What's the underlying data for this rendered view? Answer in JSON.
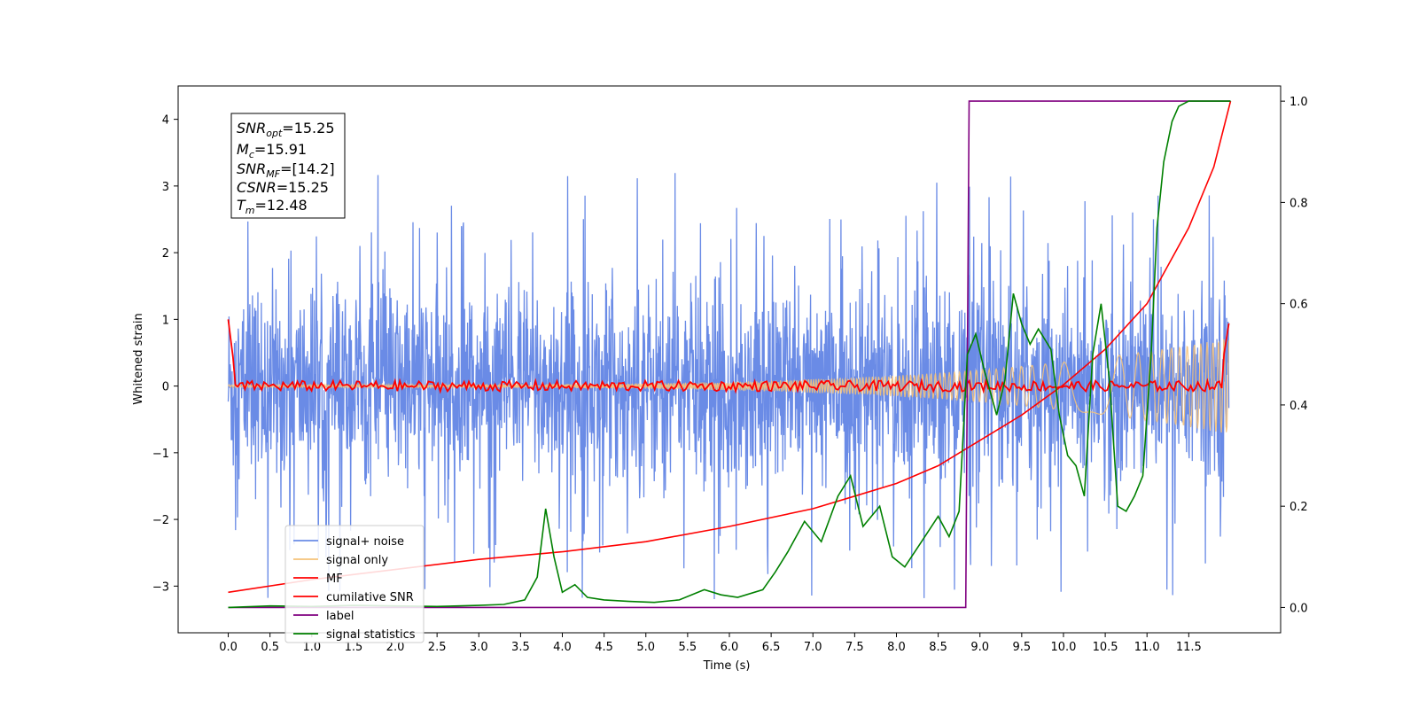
{
  "chart_data": {
    "type": "line",
    "xlabel": "Time (s)",
    "ylabel_left": "Whitened strain",
    "ylabel_right": "",
    "xlim": [
      -0.6,
      12.6
    ],
    "ylim_left": [
      -3.7,
      4.5
    ],
    "ylim_right": [
      -0.05,
      1.03
    ],
    "x_ticks": [
      "0.0",
      "0.5",
      "1.0",
      "1.5",
      "2.0",
      "2.5",
      "3.0",
      "3.5",
      "4.0",
      "4.5",
      "5.0",
      "5.5",
      "6.0",
      "6.5",
      "7.0",
      "7.5",
      "8.0",
      "8.5",
      "9.0",
      "9.5",
      "10.0",
      "10.5",
      "11.0",
      "11.5"
    ],
    "y_ticks_left": [
      "4",
      "3",
      "2",
      "1",
      "0",
      "−1",
      "−2",
      "−3"
    ],
    "y_ticks_right": [
      "1.0",
      "0.8",
      "0.6",
      "0.4",
      "0.2",
      "0.0"
    ],
    "grid": false,
    "legend_position": "lower-left",
    "annotation": {
      "snr_opt": {
        "base": "SNR",
        "sub": "opt",
        "value": "=15.25"
      },
      "mc": {
        "base": "M",
        "sub": "c",
        "value": "=15.91"
      },
      "snr_mf": {
        "base": "SNR",
        "sub": "MF",
        "value": "=[14.2]"
      },
      "csnr": {
        "base": "CSNR",
        "sub": "",
        "value": "=15.25"
      },
      "tm": {
        "base": "T",
        "sub": "m",
        "value": "=12.48"
      }
    },
    "series": [
      {
        "name": "signal+ noise",
        "color": "#6a8be6",
        "axis": "left",
        "description": "noise-dominated, amplitude about ±1.5 with spikes to ±3"
      },
      {
        "name": "signal only",
        "color": "#f5c27a",
        "axis": "left",
        "description": "chirp growing from ~0.02 to ~0.7 amplitude"
      },
      {
        "name": "MF",
        "color": "#ff0000",
        "axis": "left",
        "description": "near 0, starts at 1.0"
      },
      {
        "name": "cumilative SNR",
        "color": "#ff0000",
        "axis": "right",
        "x": [
          0.0,
          1.0,
          2.0,
          3.0,
          4.0,
          5.0,
          6.0,
          7.0,
          7.5,
          8.0,
          8.5,
          9.0,
          9.5,
          10.0,
          10.5,
          11.0,
          11.5,
          11.8,
          12.0
        ],
        "y": [
          0.03,
          0.055,
          0.075,
          0.095,
          0.11,
          0.13,
          0.16,
          0.195,
          0.22,
          0.245,
          0.28,
          0.33,
          0.38,
          0.44,
          0.51,
          0.6,
          0.75,
          0.87,
          1.0
        ]
      },
      {
        "name": "label",
        "color": "#800080",
        "axis": "right",
        "x": [
          0.0,
          8.83,
          8.87,
          12.0
        ],
        "y": [
          0.0,
          0.0,
          1.0,
          1.0
        ]
      },
      {
        "name": "signal statistics",
        "color": "#008000",
        "axis": "right",
        "x": [
          0.0,
          0.5,
          1.0,
          1.5,
          2.0,
          2.5,
          3.0,
          3.3,
          3.55,
          3.7,
          3.8,
          3.9,
          4.0,
          4.15,
          4.3,
          4.5,
          4.8,
          5.1,
          5.4,
          5.7,
          5.9,
          6.1,
          6.4,
          6.55,
          6.7,
          6.9,
          7.1,
          7.3,
          7.45,
          7.6,
          7.8,
          7.95,
          8.1,
          8.3,
          8.5,
          8.63,
          8.75,
          8.85,
          8.95,
          9.05,
          9.2,
          9.3,
          9.4,
          9.5,
          9.6,
          9.7,
          9.85,
          9.95,
          10.05,
          10.15,
          10.25,
          10.35,
          10.45,
          10.55,
          10.65,
          10.75,
          10.85,
          10.95,
          11.05,
          11.12,
          11.2,
          11.3,
          11.38,
          11.5,
          11.65,
          11.8,
          12.0
        ],
        "y": [
          0.0,
          0.003,
          0.002,
          0.004,
          0.003,
          0.002,
          0.004,
          0.006,
          0.015,
          0.06,
          0.195,
          0.1,
          0.03,
          0.045,
          0.02,
          0.015,
          0.012,
          0.01,
          0.015,
          0.035,
          0.025,
          0.02,
          0.035,
          0.07,
          0.11,
          0.17,
          0.13,
          0.22,
          0.26,
          0.16,
          0.2,
          0.1,
          0.08,
          0.13,
          0.18,
          0.14,
          0.19,
          0.5,
          0.54,
          0.47,
          0.38,
          0.45,
          0.62,
          0.56,
          0.52,
          0.55,
          0.51,
          0.38,
          0.3,
          0.28,
          0.22,
          0.5,
          0.6,
          0.45,
          0.2,
          0.19,
          0.22,
          0.26,
          0.5,
          0.75,
          0.88,
          0.96,
          0.99,
          1.0,
          1.0,
          1.0,
          1.0
        ]
      }
    ]
  }
}
